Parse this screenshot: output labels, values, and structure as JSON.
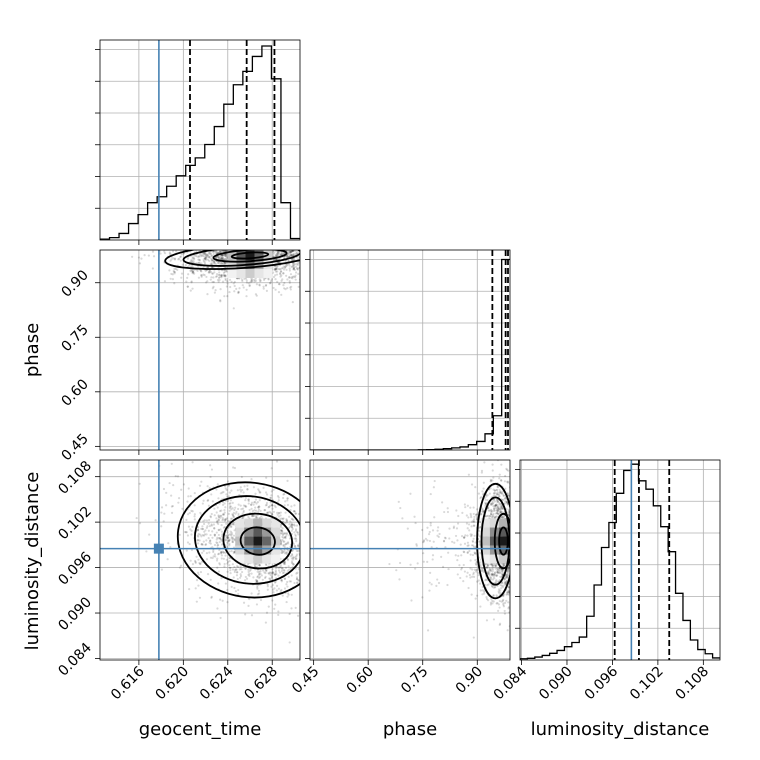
{
  "chart_data": {
    "type": "corner",
    "parameters": [
      "geocent_time",
      "phase",
      "luminosity_distance"
    ],
    "axis_labels": {
      "geocent_time": "geocent_time",
      "phase": "phase",
      "luminosity_distance": "luminosity_distance"
    },
    "ranges": {
      "geocent_time": [
        0.6125,
        0.6305
      ],
      "phase": [
        0.44,
        0.99
      ],
      "luminosity_distance": [
        0.0838,
        0.1102
      ]
    },
    "ticks": {
      "geocent_time": [
        "0.616",
        "0.620",
        "0.624",
        "0.628"
      ],
      "phase": [
        "0.45",
        "0.60",
        "0.75",
        "0.90"
      ],
      "luminosity_distance": [
        "0.084",
        "0.090",
        "0.096",
        "0.102",
        "0.108"
      ]
    },
    "truths": {
      "geocent_time": 0.6178,
      "phase": null,
      "luminosity_distance": 0.0985
    },
    "quantiles": {
      "geocent_time": [
        0.6206,
        0.6257,
        0.6282
      ],
      "phase": [
        0.9415,
        0.978,
        0.9845
      ],
      "luminosity_distance": [
        0.0963,
        0.0995,
        0.1035
      ]
    },
    "histograms": {
      "geocent_time": {
        "edges_range": [
          0.6125,
          0.6305
        ],
        "counts": [
          0.3,
          0.8,
          2.2,
          5.5,
          8.5,
          12.5,
          14.5,
          18,
          21.5,
          25,
          27.5,
          32,
          38,
          45.5,
          52,
          56.5,
          61.5,
          65,
          54,
          12.5,
          0.5
        ]
      },
      "phase": {
        "edges_range": [
          0.44,
          0.99
        ],
        "counts": [
          0,
          0,
          0,
          0,
          0,
          0,
          0,
          0,
          0,
          0,
          0,
          0,
          0,
          0.1,
          0.2,
          0.4,
          0.7,
          1.1,
          1.6,
          2.8,
          4.5,
          8.5,
          18,
          100
        ]
      },
      "luminosity_distance": {
        "edges_range": [
          0.0838,
          0.1102
        ],
        "counts": [
          0.3,
          0.4,
          0.7,
          1.1,
          1.6,
          2.3,
          3.2,
          4.2,
          5.5,
          10.5,
          18,
          27,
          33,
          40,
          45.5,
          47,
          43,
          41,
          37,
          32,
          26,
          16,
          9.5,
          4.8,
          2.5,
          1.5,
          0.5
        ]
      },
      "ylims": {
        "geocent_time": 67,
        "phase": 105,
        "luminosity_distance": 48
      }
    },
    "densities": {
      "phase_vs_geocent_time": {
        "mean": [
          0.626,
          0.958
        ],
        "sd": [
          0.0033,
          0.045
        ],
        "rho": 0.15,
        "skew": "high phase"
      },
      "luminosity_distance_vs_geocent_time": {
        "mean": [
          0.6267,
          0.0995
        ],
        "sd": [
          0.0031,
          0.0036
        ],
        "rho": -0.32
      },
      "luminosity_distance_vs_phase": {
        "mean": [
          0.972,
          0.0995
        ],
        "sd": [
          0.04,
          0.0036
        ],
        "rho": 0.0
      }
    }
  }
}
